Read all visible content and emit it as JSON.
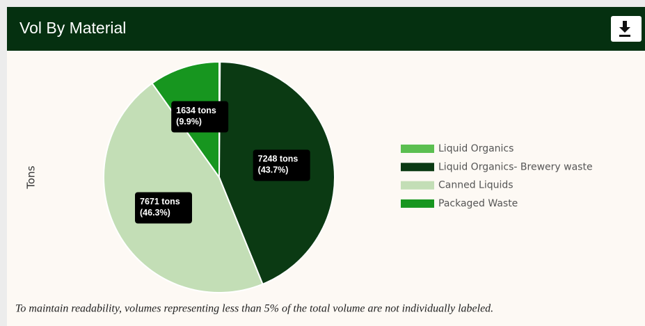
{
  "chart_data": {
    "type": "pie",
    "title": "Vol By Material",
    "y_label": "Tons",
    "categories": [
      "Liquid Organics",
      "Liquid Organics- Brewery waste",
      "Canned Liquids",
      "Packaged Waste"
    ],
    "values": [
      20,
      7248,
      7671,
      1634
    ],
    "value_labels": [
      null,
      "7248 tons",
      "7671 tons",
      "1634 tons"
    ],
    "percent_labels": [
      null,
      "(43.7%)",
      "(46.3%)",
      "(9.9%)"
    ],
    "colors": [
      "#5bbf50",
      "#0b3a13",
      "#c3deb6",
      "#17961f"
    ],
    "legend": "right",
    "note": "To maintain readability, volumes representing less than 5% of the total volume are not individually labeled."
  }
}
